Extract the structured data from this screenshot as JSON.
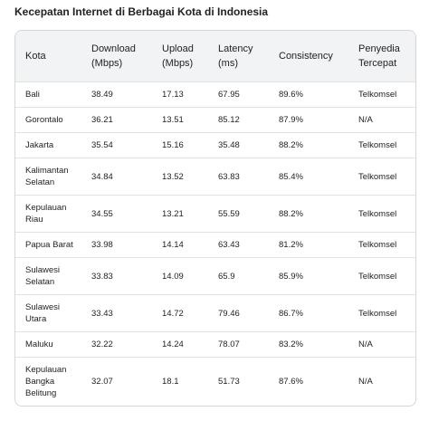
{
  "title": "Kecepatan Internet di Berbagai Kota di Indonesia",
  "table": {
    "headers": [
      "Kota",
      "Download (Mbps)",
      "Upload (Mbps)",
      "Latency (ms)",
      "Consistency",
      "Penyedia Tercepat"
    ],
    "rows": [
      [
        "Bali",
        "38.49",
        "17.13",
        "67.95",
        "89.6%",
        "Telkomsel"
      ],
      [
        "Gorontalo",
        "36.21",
        "13.51",
        "85.12",
        "87.9%",
        "N/A"
      ],
      [
        "Jakarta",
        "35.54",
        "15.16",
        "35.48",
        "88.2%",
        "Telkomsel"
      ],
      [
        "Kalimantan Selatan",
        "34.84",
        "13.52",
        "63.83",
        "85.4%",
        "Telkomsel"
      ],
      [
        "Kepulauan Riau",
        "34.55",
        "13.21",
        "55.59",
        "88.2%",
        "Telkomsel"
      ],
      [
        "Papua Barat",
        "33.98",
        "14.14",
        "63.43",
        "81.2%",
        "Telkomsel"
      ],
      [
        "Sulawesi Selatan",
        "33.83",
        "14.09",
        "65.9",
        "85.9%",
        "Telkomsel"
      ],
      [
        "Sulawesi Utara",
        "33.43",
        "14.72",
        "79.46",
        "86.7%",
        "Telkomsel"
      ],
      [
        "Maluku",
        "32.22",
        "14.24",
        "78.07",
        "83.2%",
        "N/A"
      ],
      [
        "Kepulauan Bangka Belitung",
        "32.07",
        "18.1",
        "51.73",
        "87.6%",
        "N/A"
      ]
    ]
  }
}
